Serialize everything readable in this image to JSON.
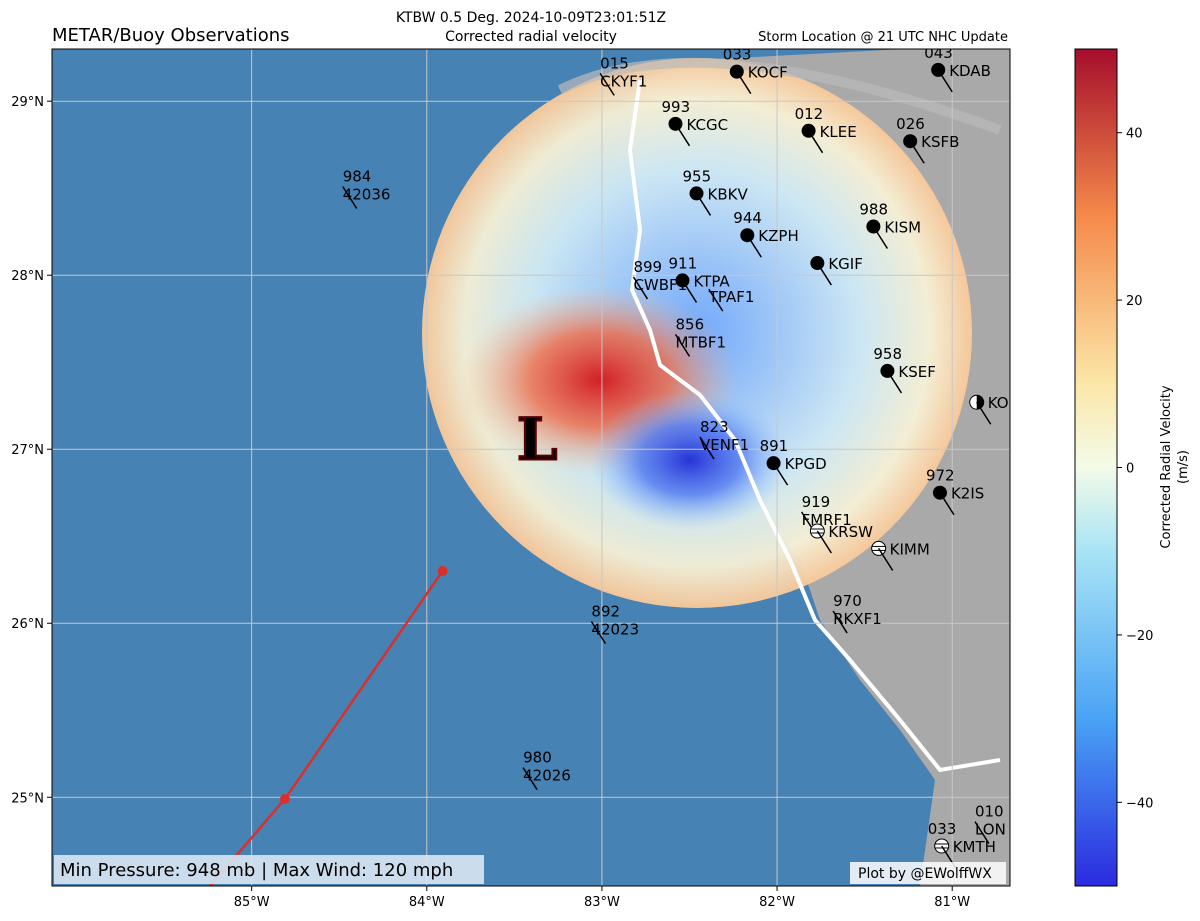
{
  "map": {
    "title": "METAR/Buoy Observations",
    "center_title": [
      "KTBW 0.5 Deg. 2024-10-09T23:01:51Z",
      "Corrected radial velocity"
    ],
    "right_title": "Storm Location @ 21 UTC NHC Update",
    "xlim": [
      -86.14,
      -80.67
    ],
    "ylim": [
      24.49,
      29.3
    ],
    "xticks": [
      {
        "value": -85,
        "label": "85°W"
      },
      {
        "value": -84,
        "label": "84°W"
      },
      {
        "value": -83,
        "label": "83°W"
      },
      {
        "value": -82,
        "label": "82°W"
      },
      {
        "value": -81,
        "label": "81°W"
      }
    ],
    "yticks": [
      {
        "value": 25,
        "label": "25°N"
      },
      {
        "value": 26,
        "label": "26°N"
      },
      {
        "value": 27,
        "label": "27°N"
      },
      {
        "value": 28,
        "label": "28°N"
      },
      {
        "value": 29,
        "label": "29°N"
      }
    ],
    "grid": true,
    "storm_marker": {
      "text": "L",
      "lon": -83.37,
      "lat": 27.08,
      "color": "#e8231c"
    },
    "track": {
      "color": "#d9302b",
      "lon": [
        -83.91,
        -84.81,
        -85.4
      ],
      "lat": [
        26.3,
        24.99,
        24.3
      ]
    },
    "stations": [
      {
        "id": "CKYF1",
        "pressure": "015",
        "lon": -83.01,
        "lat": 29.16,
        "marker": "none"
      },
      {
        "id": "KOCF",
        "pressure": "033",
        "lon": -82.23,
        "lat": 29.17,
        "marker": "filled"
      },
      {
        "id": "KDAB",
        "pressure": "043",
        "lon": -81.08,
        "lat": 29.18,
        "marker": "filled"
      },
      {
        "id": "KCGC",
        "pressure": "993",
        "lon": -82.58,
        "lat": 28.87,
        "marker": "filled"
      },
      {
        "id": "KLEE",
        "pressure": "012",
        "lon": -81.82,
        "lat": 28.83,
        "marker": "filled"
      },
      {
        "id": "KSFB",
        "pressure": "026",
        "lon": -81.24,
        "lat": 28.77,
        "marker": "filled"
      },
      {
        "id": "42036",
        "pressure": "984",
        "lon": -84.48,
        "lat": 28.51,
        "marker": "none"
      },
      {
        "id": "KBKV",
        "pressure": "955",
        "lon": -82.46,
        "lat": 28.47,
        "marker": "filled"
      },
      {
        "id": "KZPH",
        "pressure": "944",
        "lon": -82.17,
        "lat": 28.23,
        "marker": "filled"
      },
      {
        "id": "KISM",
        "pressure": "988",
        "lon": -81.45,
        "lat": 28.28,
        "marker": "filled"
      },
      {
        "id": "KGIF",
        "lon": -81.77,
        "lat": 28.07,
        "marker": "filled"
      },
      {
        "id": "CWBF1",
        "pressure": "899",
        "lon": -82.82,
        "lat": 27.99,
        "marker": "none"
      },
      {
        "id": "KTPA",
        "pressure": "911",
        "lon": -82.54,
        "lat": 27.97,
        "marker": "filled"
      },
      {
        "id": "TPAF1",
        "lon": -82.39,
        "lat": 27.92,
        "marker": "none"
      },
      {
        "id": "MTBF1",
        "pressure": "856",
        "lon": -82.58,
        "lat": 27.66,
        "marker": "none"
      },
      {
        "id": "KSEF",
        "pressure": "958",
        "lon": -81.37,
        "lat": 27.45,
        "marker": "filled"
      },
      {
        "id": "KO",
        "lon": -80.86,
        "lat": 27.27,
        "marker": "half"
      },
      {
        "id": "VENF1",
        "pressure": "823",
        "lon": -82.44,
        "lat": 27.07,
        "marker": "none"
      },
      {
        "id": "KPGD",
        "pressure": "891",
        "lon": -82.02,
        "lat": 26.92,
        "marker": "filled"
      },
      {
        "id": "K2IS",
        "pressure": "972",
        "lon": -81.07,
        "lat": 26.75,
        "marker": "filled"
      },
      {
        "id": "FMRF1",
        "pressure": "919",
        "lon": -81.86,
        "lat": 26.64,
        "marker": "none"
      },
      {
        "id": "KRSW",
        "lon": -81.77,
        "lat": 26.53,
        "marker": "overcast"
      },
      {
        "id": "KIMM",
        "lon": -81.42,
        "lat": 26.43,
        "marker": "overcast"
      },
      {
        "id": "RKXF1",
        "pressure": "970",
        "lon": -81.68,
        "lat": 26.07,
        "marker": "none"
      },
      {
        "id": "42023",
        "pressure": "892",
        "lon": -83.06,
        "lat": 26.01,
        "marker": "none"
      },
      {
        "id": "42026",
        "pressure": "980",
        "lon": -83.45,
        "lat": 25.17,
        "marker": "none"
      },
      {
        "id": "LON",
        "pressure": "010",
        "lon": -80.87,
        "lat": 24.86,
        "marker": "none"
      },
      {
        "id": "KMTH",
        "pressure": "033",
        "lon": -81.06,
        "lat": 24.72,
        "marker": "overcast"
      }
    ],
    "info_box": "Min Pressure: 948 mb | Max Wind: 120 mph",
    "credit": "Plot by @EWolffWX",
    "colorbar": {
      "label": [
        "Corrected Radial Velocity",
        "(m/s)"
      ],
      "ylim": [
        -50,
        50
      ],
      "yticks": [
        {
          "value": -40,
          "label": "−40"
        },
        {
          "value": -20,
          "label": "−20"
        },
        0,
        20,
        40
      ]
    }
  }
}
